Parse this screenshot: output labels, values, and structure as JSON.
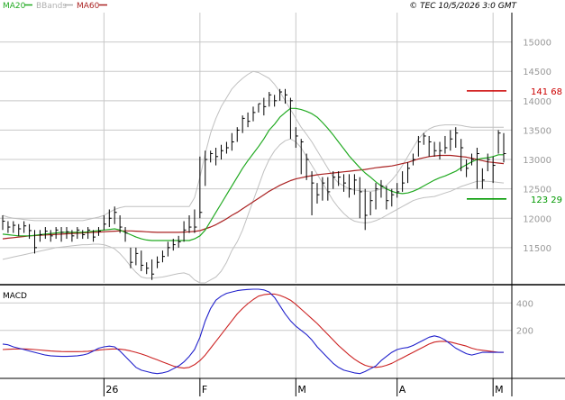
{
  "header": {
    "legend": [
      {
        "label": "MA20",
        "color": "#22aa22"
      },
      {
        "label": "BBands",
        "color": "#b0b0b0"
      },
      {
        "label": "MA60",
        "color": "#aa2222"
      }
    ],
    "copyright": "© TEC 10/5/2026 3:0 GMT"
  },
  "colors": {
    "price_bars": "#000000",
    "ma20": "#22aa22",
    "bbands": "#c0c0c0",
    "ma60": "#aa2222",
    "macd": "#2222cc",
    "signal": "#cc2222",
    "resistance": "#cc0000",
    "support": "#009900",
    "grid": "#c8c8c8"
  },
  "chart_data": [
    {
      "type": "line",
      "subtype": "ohlc",
      "title": "",
      "ylim": [
        10900,
        15500
      ],
      "y_ticks": [
        11500,
        12000,
        12500,
        13000,
        13500,
        14000,
        14500,
        15000
      ],
      "y_tick_labels": [
        "11500",
        "12000",
        "12500",
        "13000",
        "13500",
        "14000",
        "14500",
        "15000"
      ],
      "x_ticks": [
        {
          "index": 19,
          "label": "26"
        },
        {
          "index": 37,
          "label": "F"
        },
        {
          "index": 55,
          "label": "M"
        },
        {
          "index": 74,
          "label": "A"
        },
        {
          "index": 92,
          "label": "M"
        }
      ],
      "n_bars": 95,
      "close": [
        11950,
        11850,
        11880,
        11820,
        11870,
        11790,
        11500,
        11720,
        11780,
        11700,
        11800,
        11760,
        11770,
        11700,
        11800,
        11720,
        11800,
        11680,
        11780,
        11900,
        12000,
        12100,
        11850,
        11750,
        11250,
        11400,
        11200,
        11150,
        11050,
        11250,
        11350,
        11500,
        11550,
        11600,
        11800,
        11850,
        11850,
        12100,
        13000,
        13100,
        13050,
        13150,
        13200,
        13300,
        13500,
        13700,
        13650,
        13800,
        13950,
        13900,
        14100,
        14000,
        14150,
        14100,
        14000,
        13400,
        13300,
        13000,
        12600,
        12400,
        12600,
        12450,
        12700,
        12700,
        12600,
        12500,
        12650,
        12450,
        12050,
        12300,
        12500,
        12550,
        12300,
        12400,
        12450,
        12600,
        12850,
        13000,
        13300,
        13400,
        13300,
        13150,
        13150,
        13200,
        13350,
        13450,
        13200,
        12850,
        13000,
        13100,
        12650,
        13000,
        12900,
        13450,
        13100
      ],
      "high": [
        12050,
        11950,
        11950,
        11900,
        11950,
        11900,
        11800,
        11800,
        11850,
        11800,
        11850,
        11850,
        11850,
        11800,
        11850,
        11800,
        11850,
        11800,
        11850,
        12050,
        12150,
        12200,
        12050,
        11850,
        11500,
        11500,
        11450,
        11250,
        11300,
        11350,
        11450,
        11600,
        11650,
        11700,
        11950,
        12050,
        12150,
        13050,
        13150,
        13150,
        13200,
        13250,
        13300,
        13450,
        13550,
        13750,
        13800,
        13900,
        13950,
        14050,
        14150,
        14100,
        14200,
        14200,
        14050,
        13550,
        13350,
        13100,
        12800,
        12600,
        12700,
        12700,
        12800,
        12800,
        12750,
        12750,
        12750,
        12700,
        12500,
        12450,
        12600,
        12650,
        12550,
        12500,
        12600,
        12800,
        12950,
        13100,
        13400,
        13450,
        13400,
        13300,
        13300,
        13400,
        13500,
        13550,
        13350,
        13000,
        13100,
        13200,
        12850,
        13100,
        13050,
        13500,
        13450
      ],
      "low": [
        11800,
        11750,
        11750,
        11700,
        11750,
        11650,
        11400,
        11600,
        11650,
        11600,
        11650,
        11600,
        11650,
        11600,
        11650,
        11650,
        11650,
        11600,
        11700,
        11800,
        11850,
        11900,
        11750,
        11600,
        11150,
        11200,
        11100,
        11050,
        10950,
        11150,
        11250,
        11350,
        11450,
        11500,
        11600,
        11750,
        11750,
        12000,
        12550,
        12950,
        12900,
        13000,
        13100,
        13150,
        13300,
        13450,
        13550,
        13650,
        13800,
        13750,
        13900,
        13900,
        14000,
        13950,
        13350,
        13200,
        12750,
        12650,
        12050,
        12250,
        12300,
        12300,
        12500,
        12550,
        12450,
        12350,
        12400,
        12000,
        11800,
        12050,
        12150,
        12350,
        12150,
        12200,
        12350,
        12450,
        12600,
        12900,
        13050,
        13250,
        13050,
        13050,
        13000,
        13100,
        13150,
        13200,
        12800,
        12700,
        12900,
        12500,
        12500,
        12800,
        12600,
        13100,
        12950
      ],
      "ma20": [
        11730,
        11720,
        11710,
        11700,
        11700,
        11700,
        11710,
        11720,
        11730,
        11740,
        11750,
        11760,
        11760,
        11760,
        11760,
        11760,
        11770,
        11780,
        11790,
        11800,
        11810,
        11820,
        11800,
        11760,
        11720,
        11680,
        11650,
        11630,
        11620,
        11620,
        11620,
        11620,
        11620,
        11620,
        11620,
        11620,
        11650,
        11700,
        11800,
        11950,
        12100,
        12250,
        12400,
        12550,
        12700,
        12850,
        12980,
        13100,
        13220,
        13350,
        13500,
        13600,
        13720,
        13800,
        13870,
        13870,
        13850,
        13820,
        13780,
        13720,
        13630,
        13530,
        13420,
        13300,
        13180,
        13060,
        12960,
        12860,
        12770,
        12700,
        12620,
        12550,
        12500,
        12460,
        12430,
        12420,
        12430,
        12460,
        12500,
        12550,
        12600,
        12650,
        12690,
        12720,
        12760,
        12800,
        12860,
        12910,
        12960,
        13000,
        13020,
        13030,
        13050,
        13080,
        13080
      ],
      "ma60": [
        11650,
        11660,
        11670,
        11680,
        11690,
        11700,
        11705,
        11710,
        11715,
        11720,
        11725,
        11730,
        11735,
        11740,
        11745,
        11750,
        11755,
        11760,
        11765,
        11770,
        11775,
        11780,
        11785,
        11785,
        11785,
        11780,
        11775,
        11770,
        11765,
        11760,
        11760,
        11760,
        11760,
        11760,
        11765,
        11770,
        11775,
        11790,
        11820,
        11850,
        11890,
        11940,
        11990,
        12050,
        12100,
        12160,
        12220,
        12280,
        12340,
        12400,
        12460,
        12510,
        12560,
        12600,
        12640,
        12670,
        12690,
        12710,
        12725,
        12740,
        12750,
        12760,
        12770,
        12780,
        12790,
        12800,
        12810,
        12820,
        12830,
        12845,
        12860,
        12870,
        12880,
        12890,
        12910,
        12930,
        12950,
        12980,
        13010,
        13030,
        13050,
        13060,
        13070,
        13070,
        13070,
        13060,
        13050,
        13040,
        13020,
        13000,
        12980,
        12960,
        12950,
        12940,
        12930
      ],
      "bb_upper": [
        12050,
        12020,
        12000,
        11990,
        11980,
        11970,
        11960,
        11960,
        11960,
        11960,
        11960,
        11960,
        11960,
        11960,
        11960,
        11960,
        11980,
        12000,
        12020,
        12050,
        12100,
        12150,
        12180,
        12200,
        12200,
        12200,
        12200,
        12200,
        12200,
        12200,
        12200,
        12200,
        12200,
        12200,
        12200,
        12200,
        12350,
        12700,
        13100,
        13450,
        13700,
        13900,
        14050,
        14200,
        14300,
        14380,
        14450,
        14500,
        14480,
        14430,
        14380,
        14280,
        14150,
        14000,
        13850,
        13700,
        13550,
        13430,
        13300,
        13150,
        13000,
        12850,
        12700,
        12600,
        12550,
        12500,
        12480,
        12470,
        12460,
        12460,
        12470,
        12500,
        12560,
        12650,
        12760,
        12900,
        13050,
        13200,
        13350,
        13450,
        13520,
        13560,
        13580,
        13590,
        13590,
        13590,
        13580,
        13560,
        13550,
        13550,
        13550,
        13550,
        13550,
        13550,
        13550
      ],
      "bb_lower": [
        11300,
        11320,
        11340,
        11360,
        11380,
        11400,
        11420,
        11440,
        11460,
        11480,
        11500,
        11510,
        11520,
        11530,
        11540,
        11550,
        11550,
        11560,
        11560,
        11550,
        11520,
        11480,
        11400,
        11300,
        11180,
        11080,
        11000,
        10980,
        10980,
        10990,
        11000,
        11020,
        11040,
        11060,
        11070,
        11040,
        10950,
        10900,
        10900,
        10950,
        11000,
        11100,
        11250,
        11450,
        11600,
        11800,
        12050,
        12300,
        12550,
        12800,
        13000,
        13150,
        13250,
        13320,
        13350,
        13300,
        13200,
        13050,
        12900,
        12750,
        12600,
        12450,
        12300,
        12180,
        12080,
        12000,
        11950,
        11930,
        11920,
        11930,
        11960,
        12000,
        12050,
        12100,
        12150,
        12200,
        12250,
        12300,
        12330,
        12350,
        12360,
        12370,
        12400,
        12430,
        12460,
        12500,
        12540,
        12570,
        12600,
        12630,
        12630,
        12630,
        12620,
        12610,
        12600
      ],
      "levels": [
        {
          "value": 14168,
          "label": "141 68"
        },
        {
          "value": 12329,
          "label": "123 29"
        }
      ]
    },
    {
      "type": "line",
      "title": "MACD",
      "ylim": [
        -150,
        520
      ],
      "y_ticks": [
        200,
        400
      ],
      "y_tick_labels": [
        "200",
        "400"
      ],
      "series": [
        {
          "values": [
            100,
            95,
            80,
            70,
            60,
            50,
            40,
            30,
            20,
            15,
            12,
            10,
            10,
            12,
            15,
            20,
            30,
            50,
            70,
            80,
            85,
            80,
            50,
            10,
            -30,
            -70,
            -90,
            -100,
            -110,
            -115,
            -110,
            -100,
            -80,
            -60,
            -30,
            10,
            60,
            150,
            270,
            360,
            420,
            450,
            470,
            480,
            490,
            495,
            498,
            500,
            500,
            495,
            480,
            440,
            380,
            320,
            270,
            230,
            200,
            170,
            130,
            80,
            40,
            0,
            -40,
            -70,
            -90,
            -100,
            -110,
            -115,
            -100,
            -80,
            -60,
            -20,
            10,
            40,
            60,
            70,
            75,
            90,
            110,
            130,
            150,
            160,
            150,
            130,
            100,
            70,
            50,
            30,
            20,
            30,
            40,
            40,
            40,
            40,
            40
          ]
        },
        {
          "values": [
            60,
            62,
            64,
            65,
            65,
            63,
            60,
            57,
            53,
            50,
            48,
            46,
            45,
            45,
            45,
            46,
            48,
            52,
            56,
            60,
            63,
            65,
            63,
            58,
            50,
            40,
            28,
            15,
            0,
            -15,
            -30,
            -45,
            -60,
            -70,
            -75,
            -70,
            -50,
            -20,
            20,
            70,
            120,
            170,
            220,
            270,
            320,
            360,
            395,
            425,
            450,
            460,
            465,
            465,
            455,
            440,
            420,
            390,
            355,
            320,
            285,
            250,
            210,
            170,
            130,
            90,
            55,
            20,
            -10,
            -35,
            -55,
            -65,
            -70,
            -65,
            -55,
            -40,
            -20,
            0,
            20,
            40,
            60,
            80,
            100,
            115,
            120,
            120,
            115,
            105,
            95,
            85,
            70,
            60,
            55,
            50,
            45,
            40,
            40
          ]
        }
      ]
    }
  ]
}
